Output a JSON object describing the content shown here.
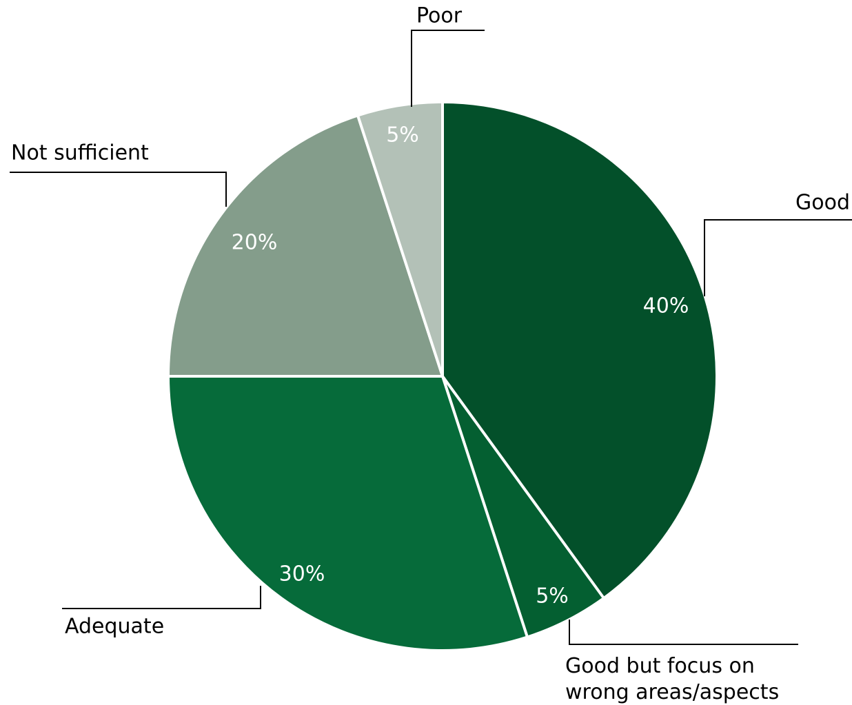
{
  "chart_data": {
    "type": "pie",
    "title": "",
    "slices": [
      {
        "label": "Good",
        "value": 40,
        "display": "40%",
        "color": "#03502a"
      },
      {
        "label": "Good but focus on wrong areas/aspects",
        "label_lines": [
          "Good but focus on",
          "wrong areas/aspects"
        ],
        "value": 5,
        "display": "5%",
        "color": "#045f31"
      },
      {
        "label": "Adequate",
        "value": 30,
        "display": "30%",
        "color": "#066b3a"
      },
      {
        "label": "Not sufficient",
        "value": 20,
        "display": "20%",
        "color": "#849d8b"
      },
      {
        "label": "Poor",
        "value": 5,
        "display": "5%",
        "color": "#b3c1b7"
      }
    ],
    "start_angle": "12 o'clock",
    "direction": "clockwise",
    "legend": "none (callout labels with leader lines)"
  }
}
